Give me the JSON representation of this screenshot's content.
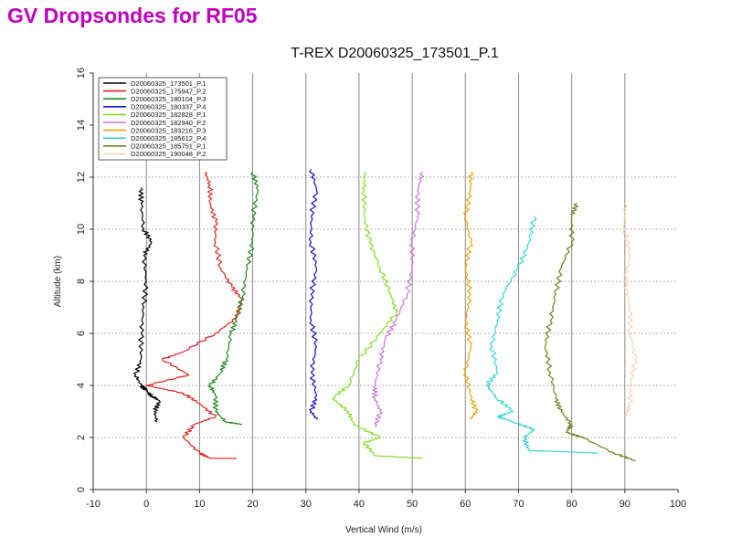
{
  "slide_title": "GV Dropsondes for RF05",
  "chart_data": {
    "type": "line",
    "title": "T-REX D20060325_173501_P.1",
    "xlabel": "Vertical Wind (m/s)",
    "ylabel": "Altitude (km)",
    "xlim": [
      -10,
      100
    ],
    "ylim": [
      0,
      16
    ],
    "xticks": [
      -10,
      0,
      10,
      20,
      30,
      40,
      50,
      60,
      70,
      80,
      90,
      100
    ],
    "yticks": [
      0,
      2,
      4,
      6,
      8,
      10,
      12,
      14,
      16
    ],
    "vertical_grid": [
      0,
      10,
      20,
      30,
      40,
      50,
      60,
      70,
      80,
      90
    ],
    "horizontal_grid": [
      2,
      4,
      6,
      8,
      10,
      12
    ],
    "legend_position": "top-left",
    "series": [
      {
        "name": "D20060325_173501_P.1",
        "color": "#000000",
        "points": [
          [
            2,
            2.6
          ],
          [
            1.5,
            3.0
          ],
          [
            2.5,
            3.4
          ],
          [
            1,
            3.6
          ],
          [
            0,
            3.8
          ],
          [
            -1,
            4.0
          ],
          [
            -2,
            4.4
          ],
          [
            -1,
            5.0
          ],
          [
            -1,
            6.0
          ],
          [
            -0.5,
            7.0
          ],
          [
            0,
            8.0
          ],
          [
            -0.5,
            9.0
          ],
          [
            1,
            9.5
          ],
          [
            -0.5,
            10.0
          ],
          [
            -1,
            11.0
          ],
          [
            -1,
            11.6
          ]
        ]
      },
      {
        "name": "D20060325_175947_P.2",
        "color": "#e02020",
        "points": [
          [
            17,
            1.2
          ],
          [
            12,
            1.2
          ],
          [
            10,
            1.4
          ],
          [
            7,
            2.0
          ],
          [
            9,
            2.5
          ],
          [
            13,
            2.8
          ],
          [
            10,
            3.3
          ],
          [
            7,
            3.7
          ],
          [
            0,
            4.0
          ],
          [
            8,
            4.4
          ],
          [
            3,
            5.0
          ],
          [
            7,
            5.3
          ],
          [
            13,
            6.0
          ],
          [
            17,
            6.6
          ],
          [
            18,
            7.3
          ],
          [
            16,
            7.8
          ],
          [
            14,
            8.5
          ],
          [
            13,
            9.5
          ],
          [
            13,
            10.3
          ],
          [
            12,
            11.0
          ],
          [
            12,
            11.7
          ],
          [
            11,
            12.2
          ]
        ]
      },
      {
        "name": "D20060325_180104_P.3",
        "color": "#1a8a1a",
        "points": [
          [
            18,
            2.5
          ],
          [
            15,
            2.6
          ],
          [
            13,
            3.0
          ],
          [
            13,
            3.6
          ],
          [
            12,
            4.0
          ],
          [
            14,
            4.5
          ],
          [
            15,
            5.0
          ],
          [
            16,
            6.0
          ],
          [
            17,
            6.6
          ],
          [
            18,
            7.4
          ],
          [
            19,
            8.5
          ],
          [
            20,
            9.5
          ],
          [
            20,
            10.5
          ],
          [
            21,
            11.5
          ],
          [
            20,
            12.2
          ]
        ]
      },
      {
        "name": "D20060325_180337_P.4",
        "color": "#1010d0",
        "points": [
          [
            32,
            2.7
          ],
          [
            31,
            3.0
          ],
          [
            32,
            3.6
          ],
          [
            31,
            4.5
          ],
          [
            32,
            5.5
          ],
          [
            31,
            6.5
          ],
          [
            31,
            7.5
          ],
          [
            32,
            8.5
          ],
          [
            31,
            9.5
          ],
          [
            31,
            10.5
          ],
          [
            32,
            11.5
          ],
          [
            31,
            12.3
          ]
        ]
      },
      {
        "name": "D20060325_182828_P.1",
        "color": "#7ee020",
        "points": [
          [
            52,
            1.2
          ],
          [
            43,
            1.3
          ],
          [
            41,
            1.8
          ],
          [
            44,
            2.0
          ],
          [
            39,
            2.5
          ],
          [
            38,
            3.0
          ],
          [
            35,
            3.5
          ],
          [
            38,
            4.0
          ],
          [
            40,
            5.0
          ],
          [
            44,
            6.0
          ],
          [
            47,
            6.8
          ],
          [
            46,
            7.5
          ],
          [
            44,
            8.5
          ],
          [
            42,
            9.5
          ],
          [
            41,
            10.5
          ],
          [
            41,
            11.5
          ],
          [
            41,
            12.2
          ]
        ]
      },
      {
        "name": "D20060325_182940_P.2",
        "color": "#d070e0",
        "points": [
          [
            43,
            2.4
          ],
          [
            44,
            3.0
          ],
          [
            43,
            3.5
          ],
          [
            43,
            4.0
          ],
          [
            44,
            5.0
          ],
          [
            45,
            5.8
          ],
          [
            47,
            6.5
          ],
          [
            49,
            7.5
          ],
          [
            50,
            8.5
          ],
          [
            50,
            9.5
          ],
          [
            51,
            10.5
          ],
          [
            51,
            11.5
          ],
          [
            52,
            12.2
          ]
        ]
      },
      {
        "name": "D20060325_183216_P.3",
        "color": "#f0a000",
        "points": [
          [
            61,
            2.7
          ],
          [
            62,
            3.0
          ],
          [
            61,
            3.6
          ],
          [
            60,
            4.5
          ],
          [
            61,
            5.5
          ],
          [
            60,
            6.5
          ],
          [
            61,
            7.5
          ],
          [
            60,
            8.5
          ],
          [
            61,
            9.5
          ],
          [
            60,
            10.5
          ],
          [
            61,
            11.5
          ],
          [
            61,
            12.2
          ]
        ]
      },
      {
        "name": "D20060325_185612_P.4",
        "color": "#30d8d0",
        "points": [
          [
            85,
            1.4
          ],
          [
            72,
            1.5
          ],
          [
            71,
            2.0
          ],
          [
            73,
            2.3
          ],
          [
            69,
            2.6
          ],
          [
            66,
            2.8
          ],
          [
            69,
            3.0
          ],
          [
            66,
            3.5
          ],
          [
            64,
            4.0
          ],
          [
            66,
            4.5
          ],
          [
            65,
            5.5
          ],
          [
            66,
            6.5
          ],
          [
            67,
            7.5
          ],
          [
            70,
            8.5
          ],
          [
            72,
            9.5
          ],
          [
            73,
            10.5
          ]
        ]
      },
      {
        "name": "D20060325_185751_P.1",
        "color": "#708020",
        "points": [
          [
            92,
            1.1
          ],
          [
            88,
            1.4
          ],
          [
            82,
            2.0
          ],
          [
            79,
            2.2
          ],
          [
            80,
            2.5
          ],
          [
            78,
            3.0
          ],
          [
            77,
            3.5
          ],
          [
            76,
            4.5
          ],
          [
            75,
            5.5
          ],
          [
            76,
            6.5
          ],
          [
            77,
            7.5
          ],
          [
            78,
            8.5
          ],
          [
            80,
            9.5
          ],
          [
            80,
            10.5
          ],
          [
            81,
            11.0
          ]
        ]
      },
      {
        "name": "D20060325_190048_P.2",
        "color": "#f8d0b0",
        "points": [
          [
            90,
            2.8
          ],
          [
            91,
            3.2
          ],
          [
            91,
            4.0
          ],
          [
            92,
            5.0
          ],
          [
            91,
            6.0
          ],
          [
            91,
            7.0
          ],
          [
            90,
            8.0
          ],
          [
            91,
            9.0
          ],
          [
            90,
            10.0
          ],
          [
            90,
            11.0
          ]
        ]
      }
    ]
  }
}
